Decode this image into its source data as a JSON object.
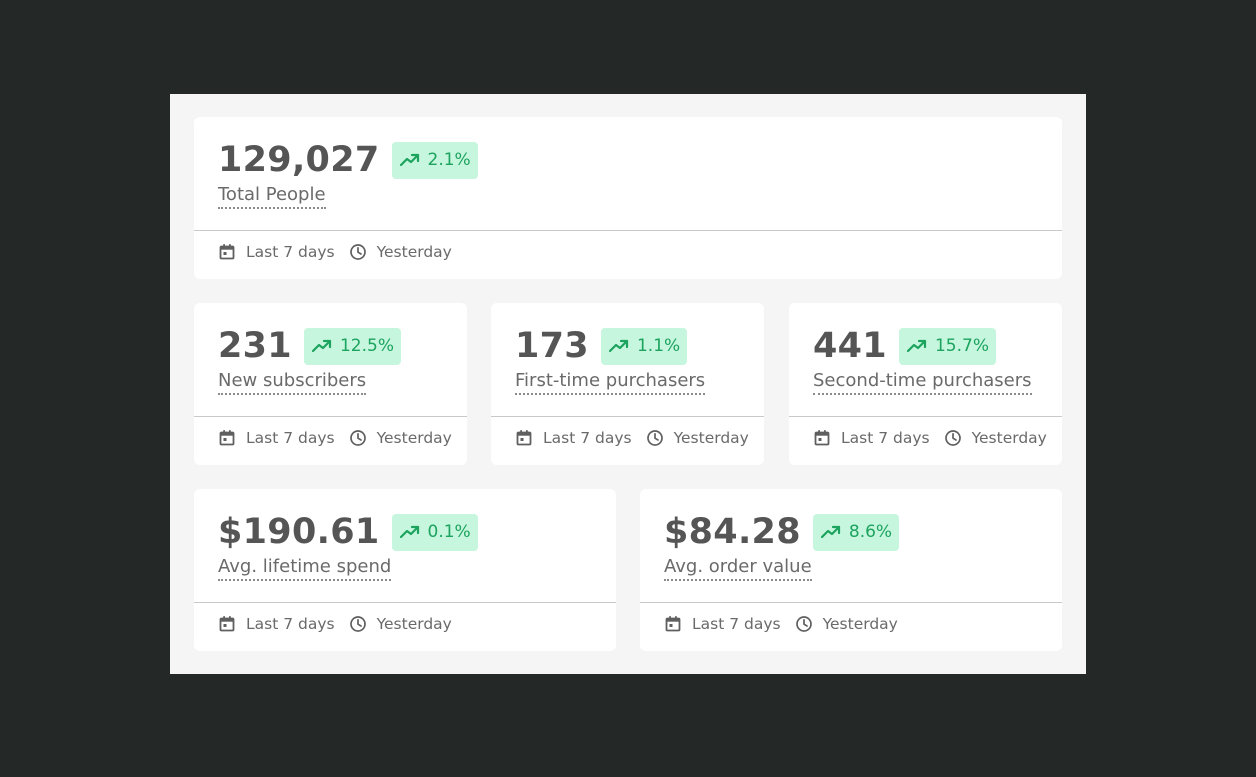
{
  "colors": {
    "page_background": "#242826",
    "panel_background": "#f5f5f5",
    "card_background": "#ffffff",
    "badge_background": "#c6f6de",
    "badge_text": "#1ca35e",
    "value_text": "#555555",
    "label_text": "#6a6a6a"
  },
  "metrics": [
    {
      "value": "129,027",
      "change": "2.1%",
      "trend_icon": "trending-up-icon",
      "label": "Total People",
      "date_range": "Last 7 days",
      "updated": "Yesterday"
    },
    {
      "value": "231",
      "change": "12.5%",
      "trend_icon": "trending-up-icon",
      "label": "New subscribers",
      "date_range": "Last 7 days",
      "updated": "Yesterday"
    },
    {
      "value": "173",
      "change": "1.1%",
      "trend_icon": "trending-up-icon",
      "label": "First-time purchasers",
      "date_range": "Last 7 days",
      "updated": "Yesterday"
    },
    {
      "value": "441",
      "change": "15.7%",
      "trend_icon": "trending-up-icon",
      "label": "Second-time purchasers",
      "date_range": "Last 7 days",
      "updated": "Yesterday"
    },
    {
      "value": "$190.61",
      "change": "0.1%",
      "trend_icon": "trending-up-icon",
      "label": "Avg. lifetime spend",
      "date_range": "Last 7 days",
      "updated": "Yesterday"
    },
    {
      "value": "$84.28",
      "change": "8.6%",
      "trend_icon": "trending-up-icon",
      "label": "Avg. order value",
      "date_range": "Last 7 days",
      "updated": "Yesterday"
    }
  ],
  "icons": {
    "date_range": "calendar-icon",
    "updated": "clock-icon",
    "trend": "trending-up-icon"
  }
}
